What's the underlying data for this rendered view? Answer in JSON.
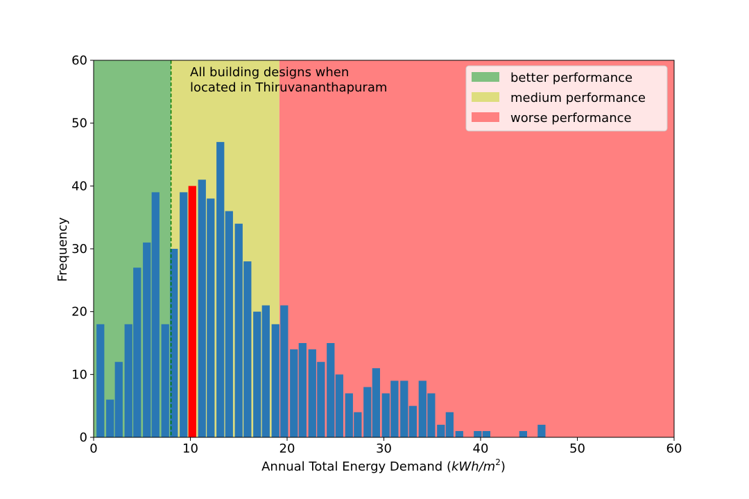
{
  "chart_data": {
    "type": "bar",
    "title": "",
    "xlabel": "Annual Total Energy Demand (",
    "xlabel_unit": "kWh/m",
    "xlabel_sup": "2",
    "xlabel_close": ")",
    "ylabel": "Frequency",
    "xlim": [
      0,
      60
    ],
    "ylim": [
      0,
      60
    ],
    "xticks": [
      "0",
      "10",
      "20",
      "30",
      "40",
      "50",
      "60"
    ],
    "yticks": [
      "0",
      "10",
      "20",
      "30",
      "40",
      "50",
      "60"
    ],
    "bin_width": 0.95,
    "bins": [
      {
        "x": 0.7,
        "y": 18
      },
      {
        "x": 1.7,
        "y": 6
      },
      {
        "x": 2.6,
        "y": 12
      },
      {
        "x": 3.6,
        "y": 18
      },
      {
        "x": 4.5,
        "y": 27
      },
      {
        "x": 5.5,
        "y": 31
      },
      {
        "x": 6.4,
        "y": 39
      },
      {
        "x": 7.4,
        "y": 18
      },
      {
        "x": 8.3,
        "y": 30
      },
      {
        "x": 9.3,
        "y": 39
      },
      {
        "x": 10.2,
        "y": 40
      },
      {
        "x": 11.2,
        "y": 41
      },
      {
        "x": 12.1,
        "y": 38
      },
      {
        "x": 13.1,
        "y": 47
      },
      {
        "x": 14.0,
        "y": 36
      },
      {
        "x": 15.0,
        "y": 34
      },
      {
        "x": 15.9,
        "y": 28
      },
      {
        "x": 16.9,
        "y": 20
      },
      {
        "x": 17.8,
        "y": 21
      },
      {
        "x": 18.8,
        "y": 18
      },
      {
        "x": 19.7,
        "y": 21
      },
      {
        "x": 20.7,
        "y": 14
      },
      {
        "x": 21.6,
        "y": 15
      },
      {
        "x": 22.6,
        "y": 14
      },
      {
        "x": 23.5,
        "y": 12
      },
      {
        "x": 24.5,
        "y": 15
      },
      {
        "x": 25.4,
        "y": 10
      },
      {
        "x": 26.4,
        "y": 7
      },
      {
        "x": 27.3,
        "y": 4
      },
      {
        "x": 28.3,
        "y": 8
      },
      {
        "x": 29.2,
        "y": 11
      },
      {
        "x": 30.2,
        "y": 7
      },
      {
        "x": 31.1,
        "y": 9
      },
      {
        "x": 32.1,
        "y": 9
      },
      {
        "x": 33.0,
        "y": 5
      },
      {
        "x": 34.0,
        "y": 9
      },
      {
        "x": 34.9,
        "y": 7
      },
      {
        "x": 35.9,
        "y": 2
      },
      {
        "x": 36.8,
        "y": 4
      },
      {
        "x": 37.8,
        "y": 1
      },
      {
        "x": 39.7,
        "y": 1
      },
      {
        "x": 40.6,
        "y": 1
      },
      {
        "x": 44.4,
        "y": 1
      },
      {
        "x": 46.3,
        "y": 2
      }
    ],
    "highlight_bin_x": 10.2,
    "regions": [
      {
        "name": "better performance",
        "from": 0,
        "to": 8.0,
        "color": "#80c080"
      },
      {
        "name": "medium performance",
        "from": 8.0,
        "to": 19.2,
        "color": "#dedd7e"
      },
      {
        "name": "worse performance",
        "from": 19.2,
        "to": 60,
        "color": "#ff8080"
      }
    ],
    "dashed_line_x": 8.0,
    "annotation": [
      "All building designs when",
      "located in Thiruvananthapuram"
    ],
    "legend_position": "top-right",
    "bar_color": "#2a77b4",
    "highlight_color": "#ff0000",
    "dashed_line_color": "#007a00"
  }
}
